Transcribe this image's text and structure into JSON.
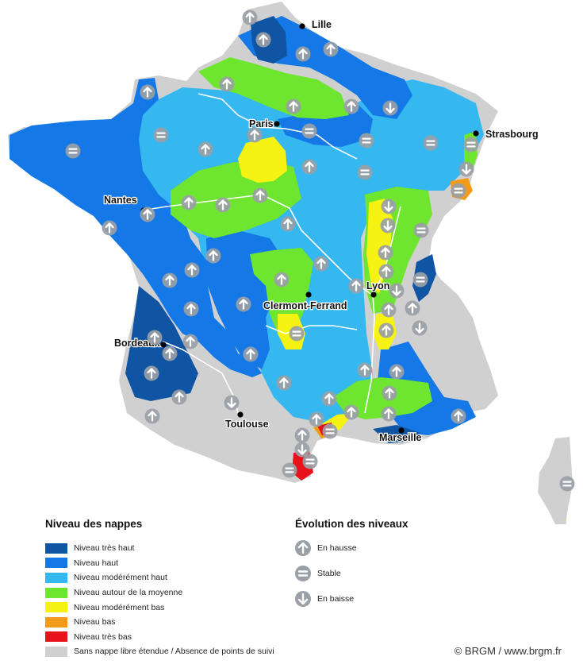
{
  "colors": {
    "tres_haut": "#0f55a3",
    "haut": "#1478e6",
    "moderement_haut": "#35b7ef",
    "moyenne": "#6ee52e",
    "moderement_bas": "#f6f312",
    "bas": "#f29b1a",
    "tres_bas": "#e8121a",
    "sans_nappe": "#d0d0d0",
    "marker": "#9aa0a6",
    "river": "#ffffff"
  },
  "cities": [
    {
      "name": "Lille"
    },
    {
      "name": "Paris"
    },
    {
      "name": "Strasbourg"
    },
    {
      "name": "Nantes"
    },
    {
      "name": "Lyon"
    },
    {
      "name": "Clermont-Ferrand"
    },
    {
      "name": "Bordeaux"
    },
    {
      "name": "Toulouse"
    },
    {
      "name": "Marseille"
    }
  ],
  "legend": {
    "title": "Niveau des nappes",
    "items": [
      {
        "label": "Niveau très haut",
        "color": "#0f55a3"
      },
      {
        "label": "Niveau haut",
        "color": "#1478e6"
      },
      {
        "label": "Niveau modérément haut",
        "color": "#35b7ef"
      },
      {
        "label": "Niveau autour de la moyenne",
        "color": "#6ee52e"
      },
      {
        "label": "Niveau modérément bas",
        "color": "#f6f312"
      },
      {
        "label": "Niveau bas",
        "color": "#f29b1a"
      },
      {
        "label": "Niveau très bas",
        "color": "#e8121a"
      },
      {
        "label": "Sans nappe libre étendue / Absence de points de suivi",
        "color": "#d0d0d0"
      }
    ]
  },
  "evolution": {
    "title": "Évolution des niveaux",
    "items": [
      {
        "label": "En hausse",
        "icon": "up"
      },
      {
        "label": "Stable",
        "icon": "stable"
      },
      {
        "label": "En baisse",
        "icon": "down"
      }
    ]
  },
  "credit": "© BRGM / www.brgm.fr"
}
